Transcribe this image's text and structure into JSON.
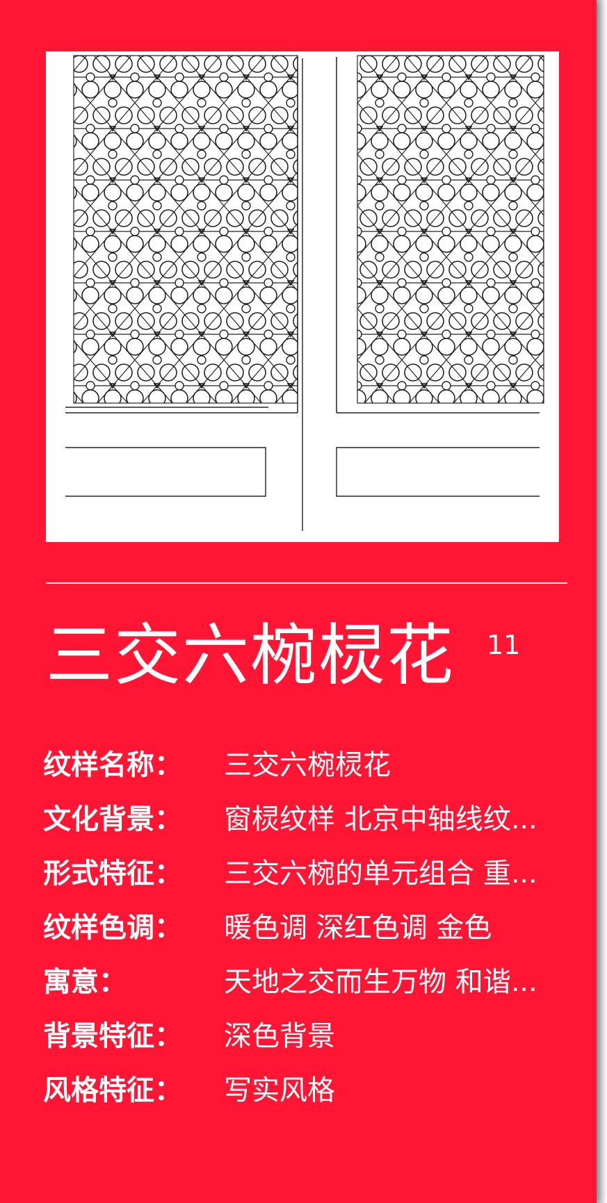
{
  "title": "三交六椀棂花",
  "number": "11",
  "image": {
    "icon": "window-lattice-drawing"
  },
  "attributes": [
    {
      "label": "纹样名称：",
      "value": "三交六椀棂花"
    },
    {
      "label": "文化背景：",
      "value": "窗棂纹样 北京中轴线纹..."
    },
    {
      "label": "形式特征：",
      "value": "三交六椀的单元组合 重..."
    },
    {
      "label": "纹样色调：",
      "value": "暖色调  深红色调  金色"
    },
    {
      "label": "寓意：",
      "value": "天地之交而生万物 和谐..."
    },
    {
      "label": "背景特征：",
      "value": "深色背景"
    },
    {
      "label": "风格特征：",
      "value": "写实风格"
    }
  ],
  "colors": {
    "background": "#ff1634",
    "text": "#ffffff",
    "frame": "#ffffff"
  }
}
